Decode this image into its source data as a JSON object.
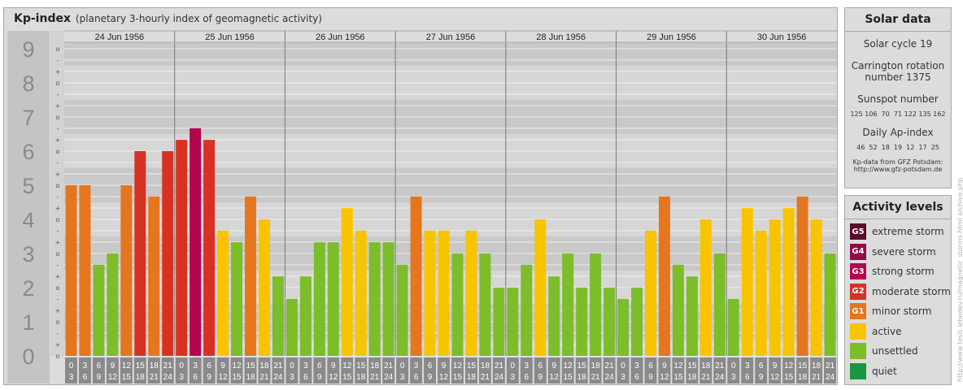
{
  "header": {
    "title": "Kp-index",
    "subtitle": "(planetary 3-hourly index of geomagnetic activity)"
  },
  "chart_data": {
    "type": "bar",
    "y_ticks": [
      "0",
      "1",
      "2",
      "3",
      "4",
      "5",
      "6",
      "7",
      "8",
      "9"
    ],
    "minor_marks": [
      "o",
      "+",
      "-"
    ],
    "ylim": [
      0,
      9.33
    ],
    "days": [
      {
        "date": "24 Jun 1956",
        "values": [
          5.0,
          5.0,
          2.67,
          3.0,
          5.0,
          6.0,
          4.67,
          6.0
        ]
      },
      {
        "date": "25 Jun 1956",
        "values": [
          6.33,
          6.67,
          6.33,
          3.67,
          3.33,
          4.67,
          4.0,
          2.33
        ]
      },
      {
        "date": "26 Jun 1956",
        "values": [
          1.67,
          2.33,
          3.33,
          3.33,
          4.33,
          3.67,
          3.33,
          3.33
        ]
      },
      {
        "date": "27 Jun 1956",
        "values": [
          2.67,
          4.67,
          3.67,
          3.67,
          3.0,
          3.67,
          3.0,
          2.0
        ]
      },
      {
        "date": "28 Jun 1956",
        "values": [
          2.0,
          2.67,
          4.0,
          2.33,
          3.0,
          2.0,
          3.0,
          2.0
        ]
      },
      {
        "date": "29 Jun 1956",
        "values": [
          1.67,
          2.0,
          3.67,
          4.67,
          2.67,
          2.33,
          4.0,
          3.0
        ]
      },
      {
        "date": "30 Jun 1956",
        "values": [
          1.67,
          4.33,
          3.67,
          4.0,
          4.33,
          4.67,
          4.0,
          3.0
        ]
      }
    ],
    "hour_labels": [
      [
        "0",
        "3"
      ],
      [
        "3",
        "6"
      ],
      [
        "6",
        "9"
      ],
      [
        "9",
        "12"
      ],
      [
        "12",
        "15"
      ],
      [
        "15",
        "18"
      ],
      [
        "18",
        "21"
      ],
      [
        "21",
        "24"
      ]
    ],
    "colors": {
      "quiet": "#1a9640",
      "unsettled": "#7cbd2a",
      "active": "#f8c400",
      "G1": "#e5761d",
      "G2": "#d73124",
      "G3": "#b3054e",
      "G4": "#8c0c4a",
      "G5": "#5a0a2c"
    }
  },
  "solar": {
    "title": "Solar data",
    "cycle": "Solar cycle 19",
    "carrington_1": "Carrington rotation",
    "carrington_2": "number 1375",
    "sunspot_title": "Sunspot number",
    "sunspot_values": "125 106  70  71 122 135 162",
    "ap_title": "Daily Ap-index",
    "ap_values": "46  52  18  19  12  17  25",
    "source_1": "Kp-data from GFZ Potsdam:",
    "source_2": "http://www.gfz-potsdam.de"
  },
  "activity": {
    "title": "Activity levels",
    "items": [
      {
        "code": "G5",
        "label": "extreme storm",
        "color": "#5a0a2c"
      },
      {
        "code": "G4",
        "label": "severe storm",
        "color": "#8c0c4a"
      },
      {
        "code": "G3",
        "label": "strong storm",
        "color": "#b3054e"
      },
      {
        "code": "G2",
        "label": "moderate storm",
        "color": "#d73124"
      },
      {
        "code": "G1",
        "label": "minor storm",
        "color": "#e5761d"
      },
      {
        "code": "",
        "label": "active",
        "color": "#f8c400"
      },
      {
        "code": "",
        "label": "unsettled",
        "color": "#7cbd2a"
      },
      {
        "code": "",
        "label": "quiet",
        "color": "#1a9640"
      }
    ]
  },
  "watermark": "http://www.tesis.lebedev.ru/magnetic_storms.html  archive.php"
}
